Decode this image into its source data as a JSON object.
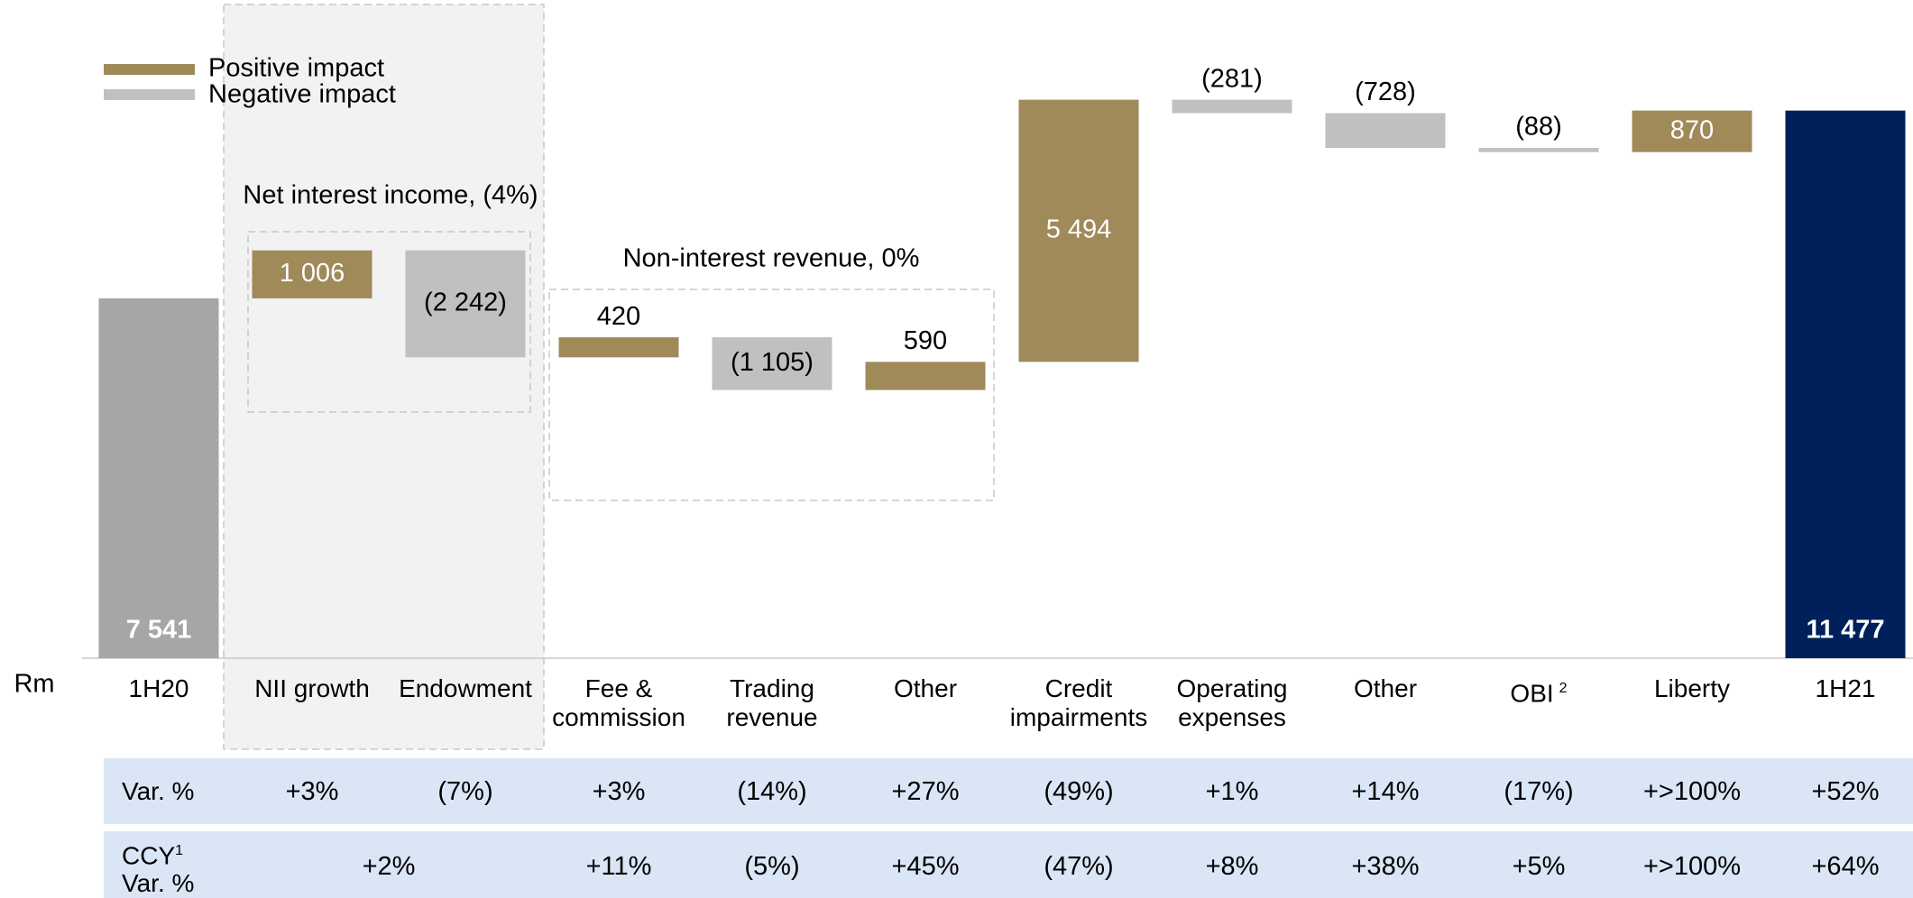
{
  "chart_data": {
    "type": "waterfall",
    "unit_label": "Rm",
    "categories": [
      "1H20",
      "NII growth",
      "Endowment",
      "Fee & commission",
      "Trading revenue",
      "Other",
      "Credit impairments",
      "Operating expenses",
      "Other",
      "OBI",
      "Liberty",
      "1H21"
    ],
    "category_note": {
      "index": 9,
      "text": "2"
    },
    "values": [
      7541,
      1006,
      -2242,
      420,
      -1105,
      590,
      5494,
      -281,
      -728,
      -88,
      870,
      11477
    ],
    "value_labels": [
      "7 541",
      "1 006",
      "(2 242)",
      "420",
      "(1 105)",
      "590",
      "5 494",
      "(281)",
      "(728)",
      "(88)",
      "870",
      "11 477"
    ],
    "colors": {
      "positive": "#a08a5a",
      "negative": "#c0c0c0",
      "start": "#a6a6a6",
      "total": "#00205b"
    },
    "legend": [
      "Positive impact",
      "Negative impact"
    ],
    "groups": [
      {
        "label": "Net interest income, (4%)"
      },
      {
        "label": "Non-interest revenue, 0%"
      }
    ],
    "table": {
      "var_label": "Var. %",
      "var": [
        "+3%",
        "(7%)",
        "+3%",
        "(14%)",
        "+27%",
        "(49%)",
        "+1%",
        "+14%",
        "(17%)",
        "+>100%",
        "+52%"
      ],
      "ccy_label": "CCY",
      "ccy_note": "1",
      "ccy_label2": "Var. %",
      "ccy": [
        "+2%",
        "+11%",
        "(5%)",
        "+45%",
        "(47%)",
        "+8%",
        "+38%",
        "+5%",
        "+>100%",
        "+64%"
      ]
    }
  }
}
